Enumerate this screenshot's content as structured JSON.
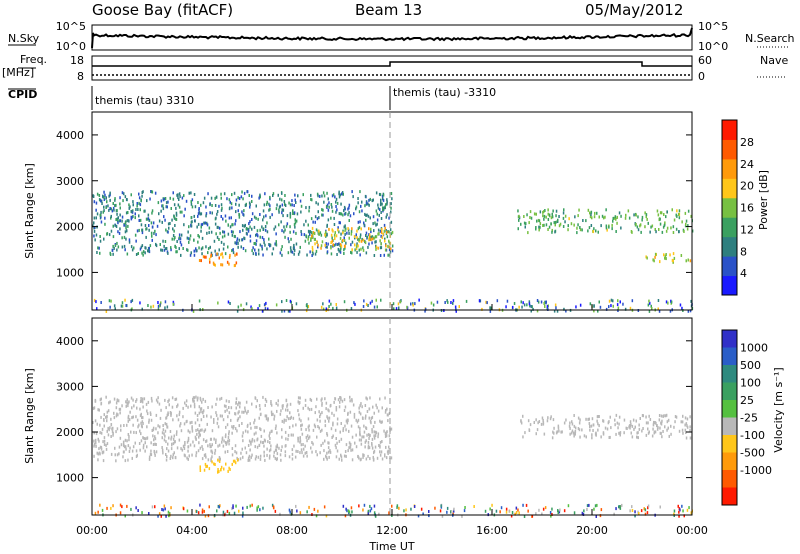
{
  "header": {
    "station": "Goose Bay (fitACF)",
    "beam": "Beam 13",
    "date": "05/May/2012"
  },
  "strips": {
    "nsky_label": "N.Sky",
    "nsky_ticks": [
      "10^5",
      "10^0"
    ],
    "nsearch_label": "N.Search",
    "freq_label_top": "Freq.",
    "freq_label_bottom": "[MHz]",
    "freq_ticks": [
      "18",
      "8"
    ],
    "nave_label": "Nave",
    "nave_ticks": [
      "60",
      "0"
    ],
    "cpid_label": "CPID",
    "cpid_segments": [
      {
        "text": "themis (tau) 3310",
        "start_hour": 0,
        "end_hour": 12
      },
      {
        "text": "themis (tau) -3310",
        "start_hour": 12,
        "end_hour": 24
      }
    ]
  },
  "colors": {
    "power_scale": [
      "#1a1aff",
      "#2a52c8",
      "#2e7f7f",
      "#3aa060",
      "#77c042",
      "#ffc61a",
      "#ff9a0a",
      "#ff5a00",
      "#ff1a00"
    ],
    "velocity_scale": [
      "#3030c8",
      "#2a5ec8",
      "#2e8a7f",
      "#3aa060",
      "#55c040",
      "#b8b8b8",
      "#ffc61a",
      "#ff9a0a",
      "#ff5a00",
      "#ff1a00"
    ],
    "ground_scatter": "#b8b8b8"
  },
  "chart_data": [
    {
      "type": "heatmap",
      "name": "power",
      "xlabel": "",
      "ylabel": "Slant Range [km]",
      "xlim": [
        0,
        24
      ],
      "ylim": [
        180,
        4500
      ],
      "yticks": [
        1000,
        2000,
        3000,
        4000
      ],
      "colorbar_label": "Power [dB]",
      "colorbar_range": [
        0,
        32
      ],
      "colorbar_ticks": [
        4,
        8,
        12,
        16,
        20,
        24,
        28
      ],
      "features": [
        {
          "start_hour": 0,
          "end_hour": 12,
          "range_start_km": 1400,
          "range_end_km": 2800,
          "level_db": 9
        },
        {
          "start_hour": 4.2,
          "end_hour": 5.8,
          "range_start_km": 1150,
          "range_end_km": 1450,
          "level_db": 24
        },
        {
          "start_hour": 8.6,
          "end_hour": 12,
          "range_start_km": 1500,
          "range_end_km": 2000,
          "level_db": 19
        },
        {
          "start_hour": 17,
          "end_hour": 24,
          "range_start_km": 1900,
          "range_end_km": 2400,
          "level_db": 14
        },
        {
          "start_hour": 22,
          "end_hour": 24,
          "range_start_km": 1250,
          "range_end_km": 1450,
          "level_db": 18
        }
      ]
    },
    {
      "type": "heatmap",
      "name": "velocity",
      "xlabel": "Time UT",
      "ylabel": "Slant Range [km]",
      "xlim": [
        0,
        24
      ],
      "ylim": [
        180,
        4500
      ],
      "yticks": [
        1000,
        2000,
        3000,
        4000
      ],
      "xticks": [
        "00:00",
        "04:00",
        "08:00",
        "12:00",
        "16:00",
        "20:00",
        "00:00"
      ],
      "colorbar_label": "Velocity [m s⁻¹]",
      "colorbar_ticks": [
        "1000",
        "500",
        "100",
        "25",
        "-25",
        "-100",
        "-500",
        "-1000"
      ],
      "features": [
        {
          "start_hour": 0,
          "end_hour": 12,
          "range_start_km": 1400,
          "range_end_km": 2800,
          "type": "ground scatter"
        },
        {
          "start_hour": 4.2,
          "end_hour": 5.8,
          "range_start_km": 1150,
          "range_end_km": 1450,
          "velocity_ms": -300
        },
        {
          "start_hour": 17,
          "end_hour": 24,
          "range_start_km": 1900,
          "range_end_km": 2400,
          "type": "ground scatter"
        }
      ]
    }
  ]
}
